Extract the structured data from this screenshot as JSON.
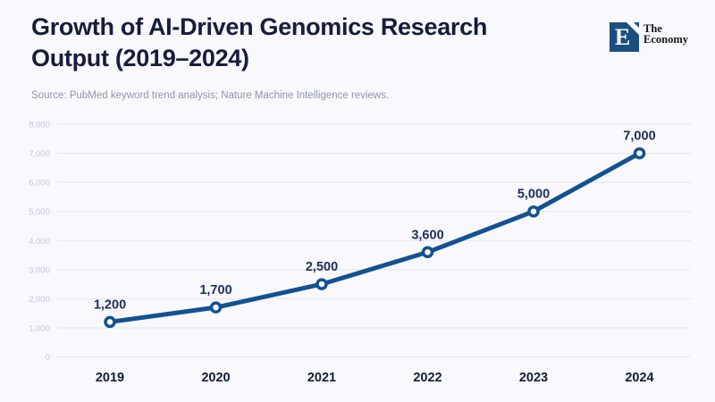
{
  "page": {
    "background": "#f8f8fd"
  },
  "header": {
    "title_line1": "Growth of AI-Driven Genomics Research",
    "title_line2": "Output (2019–2024)",
    "source": "Source: PubMed keyword trend analysis; Nature Machine Intelligence reviews."
  },
  "logo": {
    "mark_letter": "E",
    "name_line1": "The",
    "name_line2": "Economy",
    "square_color": "#1d4e80"
  },
  "chart_data": {
    "type": "line",
    "title": "Growth of AI-Driven Genomics Research Output (2019–2024)",
    "categories": [
      "2019",
      "2020",
      "2021",
      "2022",
      "2023",
      "2024"
    ],
    "values": [
      1200,
      1700,
      2500,
      3600,
      5000,
      7000
    ],
    "point_labels": [
      "1,200",
      "1,700",
      "2,500",
      "3,600",
      "5,000",
      "7,000"
    ],
    "y_ticks": [
      0,
      1000,
      2000,
      3000,
      4000,
      5000,
      6000,
      7000,
      8000
    ],
    "y_tick_labels": [
      "0",
      "1,000",
      "2,000",
      "3,000",
      "4,000",
      "5,000",
      "6,000",
      "7,000",
      "8,000"
    ],
    "ylim": [
      0,
      8000
    ],
    "xlabel": "",
    "ylabel": "",
    "grid": true,
    "legend": "none",
    "line_color": "#15518c",
    "marker_fill": "#fbfbfe",
    "label_color": "#1d2e56",
    "axis_label_color": "#131c36",
    "tick_label_color": "#c3c7d8",
    "grid_color": "#e4e6f0"
  }
}
